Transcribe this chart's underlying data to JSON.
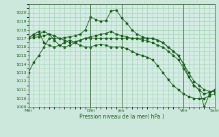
{
  "background_color": "#cce8dc",
  "plot_bg_color": "#d4ede4",
  "grid_color": "#99ccaa",
  "line_color": "#1a5c1a",
  "xlabel": "Pression niveau de la mer( hPa )",
  "ylim": [
    1009,
    1021
  ],
  "yticks": [
    1009,
    1010,
    1011,
    1012,
    1013,
    1014,
    1015,
    1016,
    1017,
    1018,
    1019,
    1020
  ],
  "xtick_labels": [
    "Mer",
    "",
    "Dim",
    "Jeu",
    "",
    "Ven",
    "",
    "Sam"
  ],
  "xtick_positions": [
    0,
    6,
    12,
    18,
    24,
    30,
    33,
    36
  ],
  "vline_positions": [
    0,
    12,
    18,
    30,
    36
  ],
  "n_points": 37,
  "lines": [
    [
      1013.0,
      1014.2,
      1015.0,
      1016.0,
      1017.0,
      1017.0,
      1017.0,
      1017.1,
      1017.2,
      1017.3,
      1017.5,
      1018.0,
      1019.5,
      1019.2,
      1019.0,
      1019.1,
      1020.2,
      1020.3,
      1019.4,
      1018.8,
      1018.0,
      1017.5,
      1017.2,
      1017.0,
      1017.0,
      1016.8,
      1016.5,
      1016.0,
      1015.5,
      1015.0,
      1014.0,
      1012.5,
      1011.5,
      1011.0,
      1009.0,
      1010.5,
      1011.0
    ],
    [
      1017.0,
      1017.1,
      1017.2,
      1017.3,
      1017.5,
      1017.3,
      1017.0,
      1016.8,
      1016.5,
      1016.6,
      1016.8,
      1017.0,
      1017.0,
      1017.0,
      1017.0,
      1017.0,
      1017.0,
      1017.0,
      1017.0,
      1017.0,
      1017.0,
      1017.0,
      1017.0,
      1017.0,
      1017.0,
      1016.8,
      1016.5,
      1016.0,
      1015.5,
      1015.0,
      1014.0,
      1013.0,
      1012.0,
      1011.5,
      1011.0,
      1010.8,
      1010.8
    ],
    [
      1017.0,
      1017.5,
      1017.8,
      1016.5,
      1016.2,
      1016.0,
      1016.2,
      1016.5,
      1016.8,
      1016.5,
      1016.2,
      1016.0,
      1016.0,
      1016.2,
      1016.3,
      1016.2,
      1016.0,
      1016.0,
      1016.0,
      1015.8,
      1015.5,
      1015.2,
      1015.0,
      1014.8,
      1014.5,
      1013.8,
      1013.0,
      1012.2,
      1011.5,
      1011.0,
      1010.5,
      1010.2,
      1010.0,
      1010.0,
      1010.0,
      1010.3,
      1010.5
    ],
    [
      1017.2,
      1017.3,
      1017.5,
      1017.8,
      1017.5,
      1016.8,
      1016.2,
      1016.0,
      1016.2,
      1016.5,
      1016.8,
      1017.0,
      1017.2,
      1017.3,
      1017.5,
      1017.6,
      1017.8,
      1017.5,
      1017.3,
      1017.2,
      1017.0,
      1017.0,
      1016.8,
      1016.7,
      1016.5,
      1016.2,
      1016.0,
      1015.5,
      1015.0,
      1014.5,
      1013.5,
      1012.5,
      1011.5,
      1011.0,
      1010.5,
      1010.7,
      1011.0
    ]
  ]
}
